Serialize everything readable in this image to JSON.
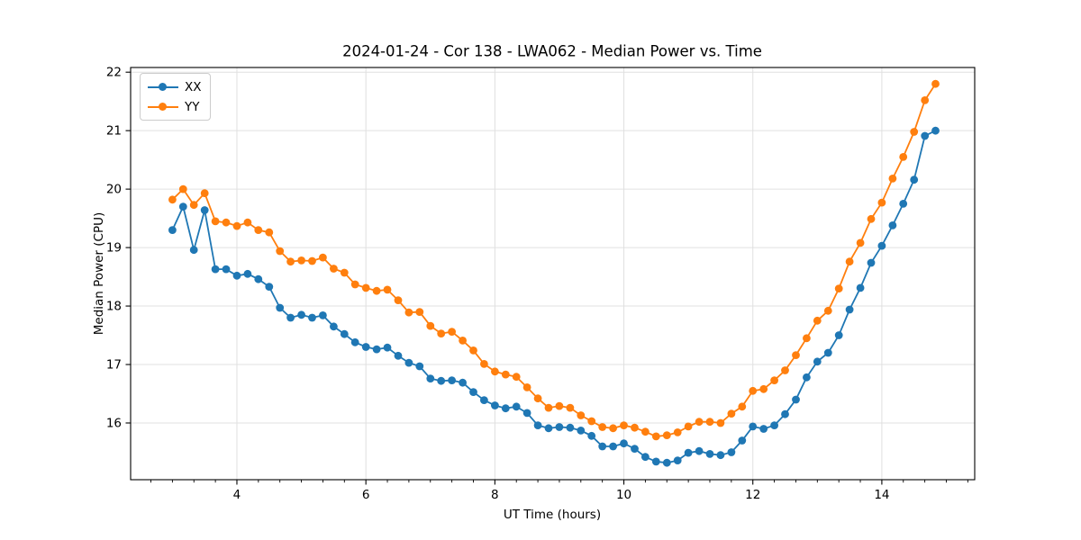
{
  "chart_data": {
    "type": "line",
    "title": "2024-01-24 - Cor 138 - LWA062 - Median Power vs. Time",
    "xlabel": "UT Time (hours)",
    "ylabel": "Median Power (CPU)",
    "xlim": [
      2.352,
      15.44
    ],
    "ylim": [
      15.03,
      22.08
    ],
    "x_ticks": [
      4,
      6,
      8,
      10,
      12,
      14
    ],
    "x_tick_labels": [
      "4",
      "6",
      "8",
      "10",
      "12",
      "14"
    ],
    "x_minor_tick_step": 0.33333,
    "y_ticks": [
      16,
      17,
      18,
      19,
      20,
      21,
      22
    ],
    "y_tick_labels": [
      "16",
      "17",
      "18",
      "19",
      "20",
      "21",
      "22"
    ],
    "grid": true,
    "legend_position": "upper-left",
    "colors": {
      "grid": "#e0e0e0",
      "spine": "#000000",
      "background": "#ffffff",
      "text": "#000000"
    },
    "x": [
      3.0,
      3.167,
      3.333,
      3.5,
      3.667,
      3.833,
      4.0,
      4.167,
      4.333,
      4.5,
      4.667,
      4.833,
      5.0,
      5.167,
      5.333,
      5.5,
      5.667,
      5.833,
      6.0,
      6.167,
      6.333,
      6.5,
      6.667,
      6.833,
      7.0,
      7.167,
      7.333,
      7.5,
      7.667,
      7.833,
      8.0,
      8.167,
      8.333,
      8.5,
      8.667,
      8.833,
      9.0,
      9.167,
      9.333,
      9.5,
      9.667,
      9.833,
      10.0,
      10.167,
      10.333,
      10.5,
      10.667,
      10.833,
      11.0,
      11.167,
      11.333,
      11.5,
      11.667,
      11.833,
      12.0,
      12.167,
      12.333,
      12.5,
      12.667,
      12.833,
      13.0,
      13.167,
      13.333,
      13.5,
      13.667,
      13.833,
      14.0,
      14.167,
      14.333,
      14.5,
      14.667,
      14.833
    ],
    "series": [
      {
        "name": "XX",
        "color": "#1f77b4",
        "values": [
          19.3,
          19.7,
          18.96,
          19.64,
          18.63,
          18.63,
          18.52,
          18.55,
          18.46,
          18.33,
          17.97,
          17.8,
          17.85,
          17.8,
          17.84,
          17.65,
          17.52,
          17.38,
          17.3,
          17.26,
          17.29,
          17.15,
          17.03,
          16.97,
          16.76,
          16.72,
          16.73,
          16.69,
          16.53,
          16.39,
          16.3,
          16.25,
          16.28,
          16.17,
          15.96,
          15.91,
          15.93,
          15.92,
          15.87,
          15.78,
          15.6,
          15.6,
          15.65,
          15.56,
          15.42,
          15.34,
          15.32,
          15.36,
          15.49,
          15.52,
          15.47,
          15.45,
          15.5,
          15.7,
          15.94,
          15.9,
          15.96,
          16.15,
          16.4,
          16.78,
          17.05,
          17.2,
          17.5,
          17.94,
          18.31,
          18.74,
          19.03,
          19.38,
          19.75,
          20.16,
          20.91,
          21.0
        ]
      },
      {
        "name": "YY",
        "color": "#ff7f0e",
        "values": [
          19.82,
          20.0,
          19.73,
          19.93,
          19.45,
          19.43,
          19.37,
          19.43,
          19.3,
          19.26,
          18.94,
          18.76,
          18.78,
          18.77,
          18.83,
          18.64,
          18.57,
          18.37,
          18.31,
          18.26,
          18.28,
          18.1,
          17.89,
          17.9,
          17.66,
          17.53,
          17.56,
          17.41,
          17.24,
          17.01,
          16.88,
          16.83,
          16.79,
          16.61,
          16.42,
          16.26,
          16.29,
          16.26,
          16.13,
          16.03,
          15.93,
          15.91,
          15.96,
          15.92,
          15.85,
          15.77,
          15.79,
          15.84,
          15.94,
          16.02,
          16.02,
          16.0,
          16.16,
          16.28,
          16.55,
          16.58,
          16.73,
          16.9,
          17.16,
          17.45,
          17.75,
          17.92,
          18.3,
          18.76,
          19.08,
          19.49,
          19.77,
          20.18,
          20.55,
          20.98,
          21.52,
          21.8
        ]
      }
    ]
  }
}
